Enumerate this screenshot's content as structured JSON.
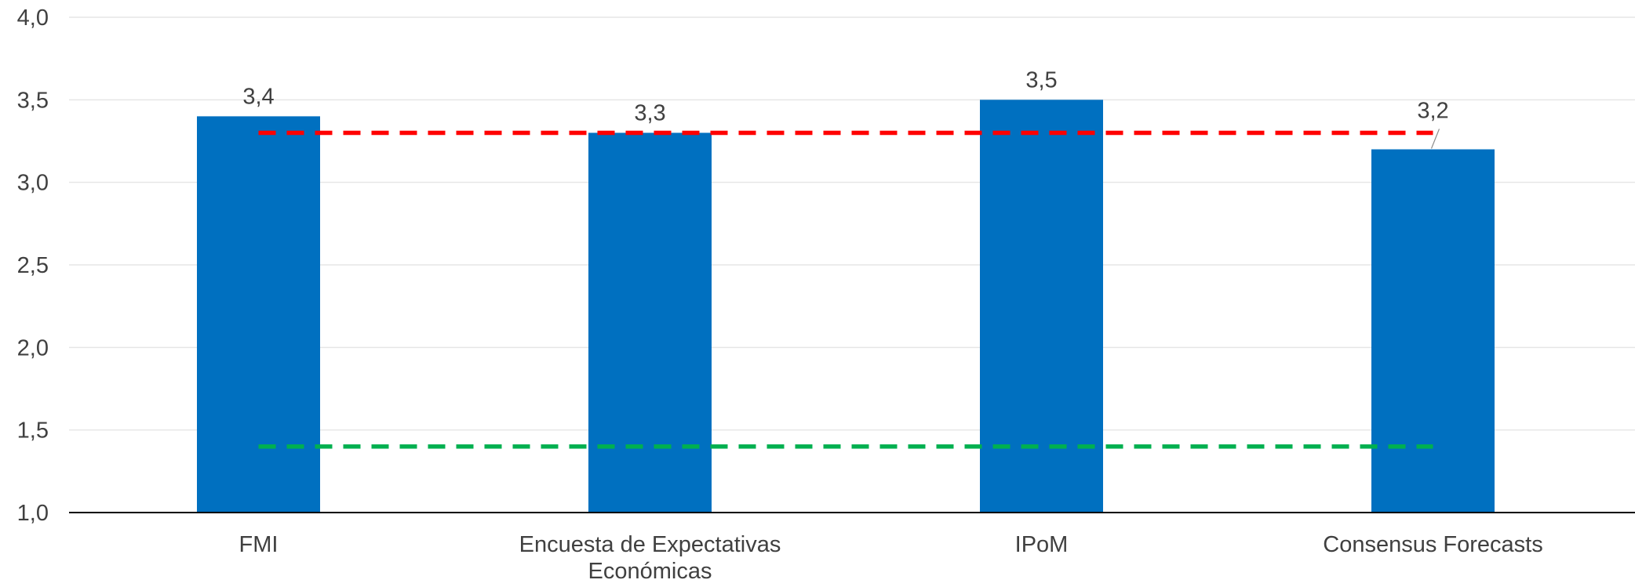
{
  "chart_data": {
    "type": "bar",
    "title": "",
    "xlabel": "",
    "ylabel": "",
    "categories": [
      [
        "FMI"
      ],
      [
        "Encuesta de Expectativas",
        "Económicas"
      ],
      [
        "IPoM"
      ],
      [
        "Consensus Forecasts"
      ]
    ],
    "values": [
      3.4,
      3.3,
      3.5,
      3.2
    ],
    "data_labels": [
      "3,4",
      "3,3",
      "3,5",
      "3,2"
    ],
    "ylim": [
      1.0,
      4.0
    ],
    "yticks": [
      1.0,
      1.5,
      2.0,
      2.5,
      3.0,
      3.5,
      4.0
    ],
    "ytick_labels": [
      "1,0",
      "1,5",
      "2,0",
      "2,5",
      "3,0",
      "3,5",
      "4,0"
    ],
    "grid": true,
    "bar_color": "#0070C0",
    "reference_lines": [
      {
        "value": 3.3,
        "color": "#FF0000",
        "style": "dashed"
      },
      {
        "value": 1.4,
        "color": "#00B050",
        "style": "dashed"
      }
    ]
  }
}
